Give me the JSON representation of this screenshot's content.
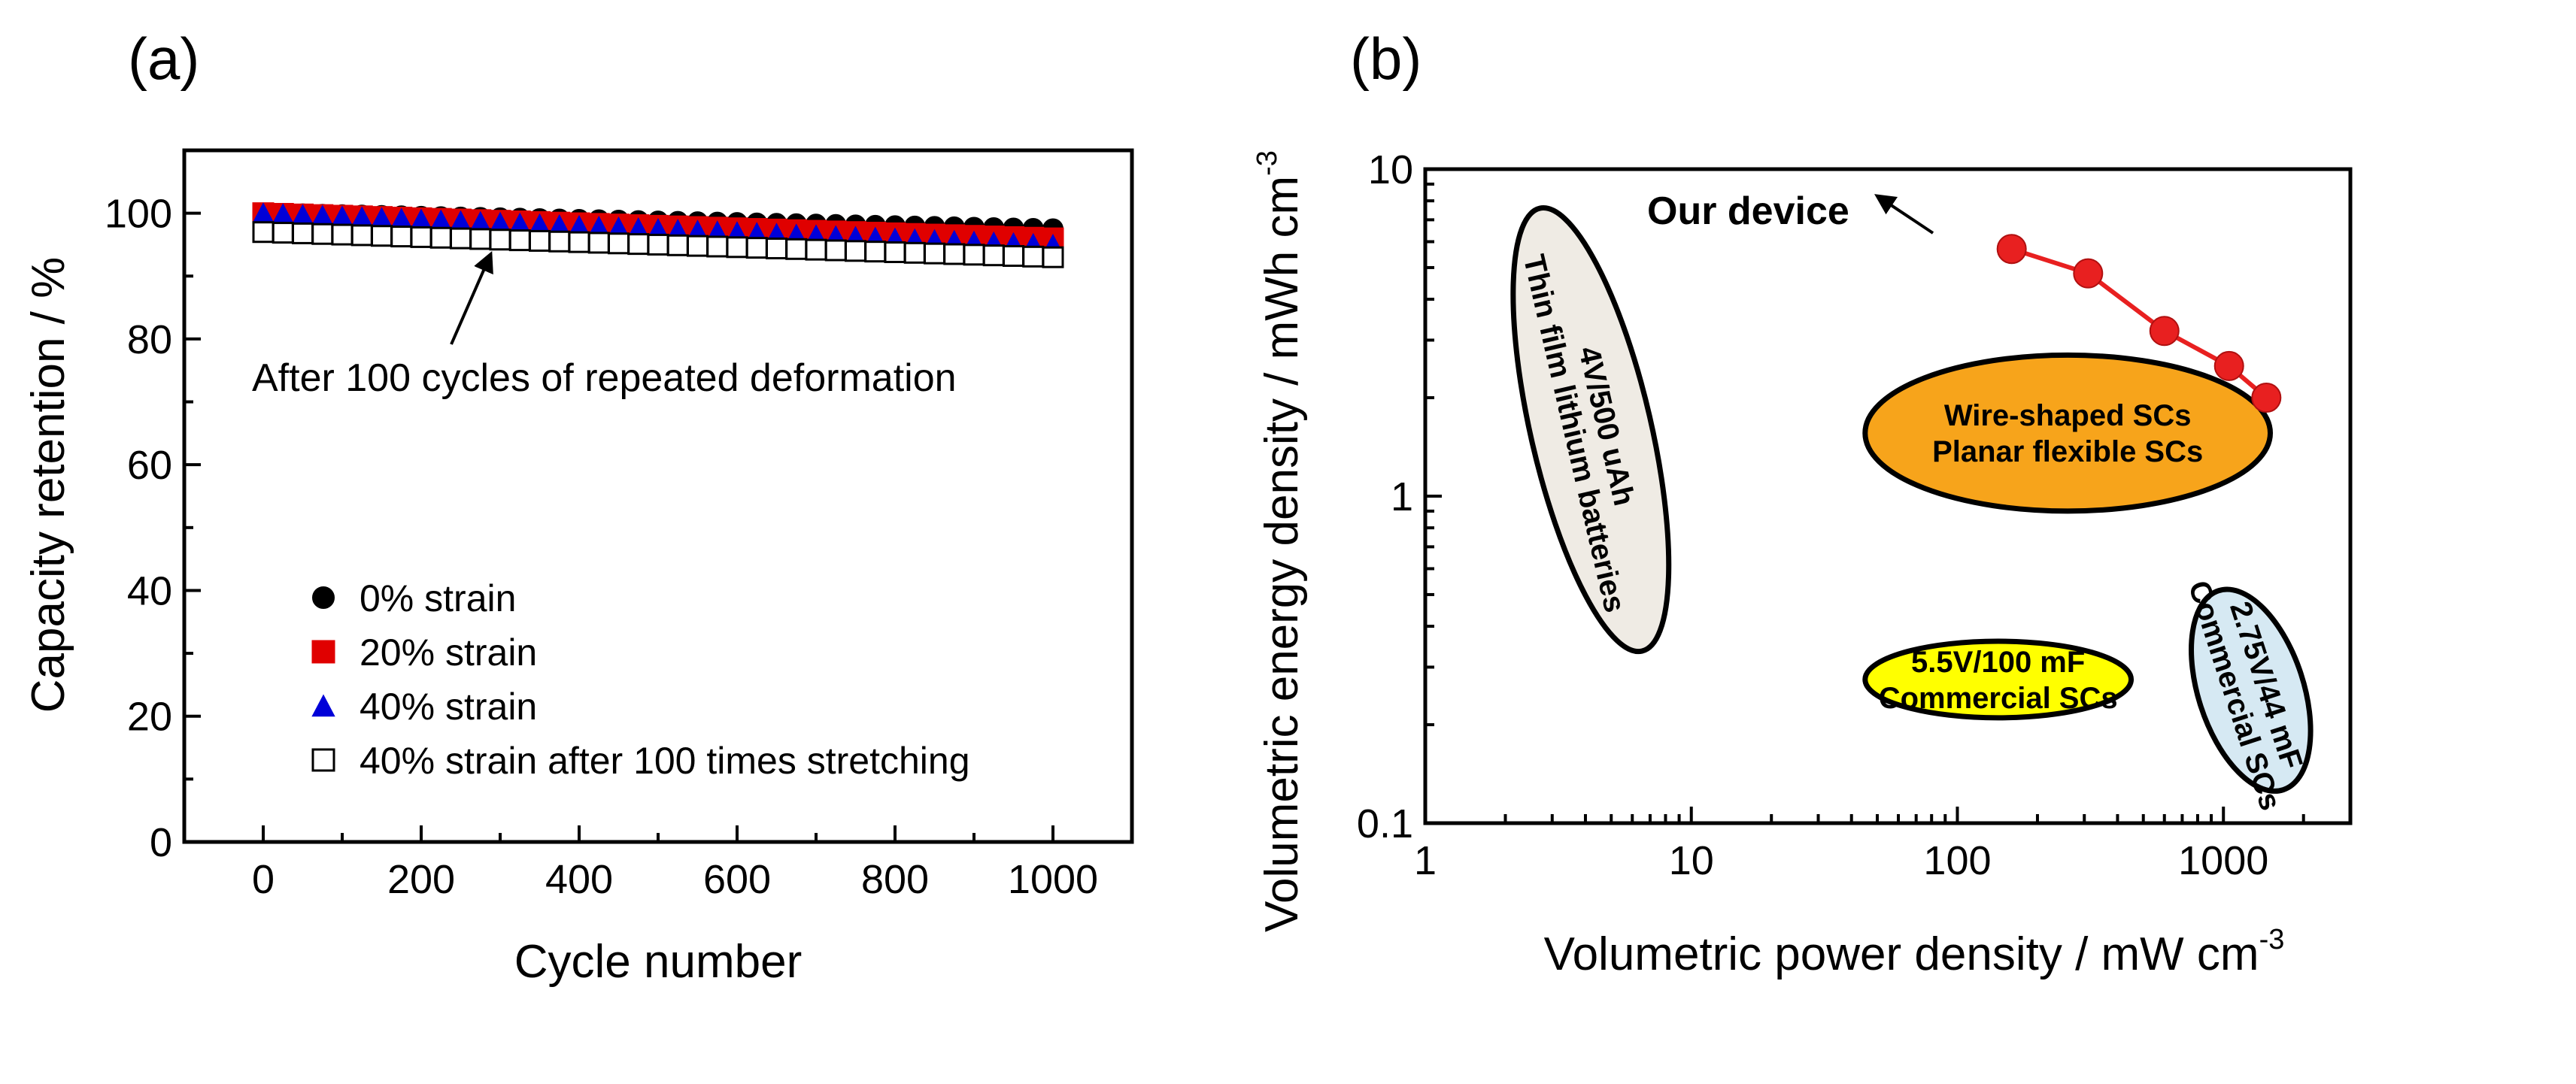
{
  "chart_data": [
    {
      "panel_label": "(a)",
      "type": "scatter",
      "xlabel": "Cycle number",
      "ylabel": "Capacity retention / %",
      "xlim": [
        -100,
        1100
      ],
      "ylim": [
        0,
        110
      ],
      "xticks": [
        0,
        200,
        400,
        600,
        800,
        1000
      ],
      "yticks": [
        0,
        20,
        40,
        60,
        80,
        100
      ],
      "grid": false,
      "legend_position": "bottom-left",
      "annotation": "After 100 cycles of repeated deformation",
      "annotation_target": {
        "x": 280,
        "y": 96
      },
      "series": [
        {
          "name": "0% strain",
          "marker": "circle",
          "color": "#000000",
          "fill": true,
          "y_start": 100,
          "y_end": 97.5
        },
        {
          "name": "20% strain",
          "marker": "square",
          "color": "#e00000",
          "fill": true,
          "y_start": 100,
          "y_end": 96
        },
        {
          "name": "40% strain",
          "marker": "triangle",
          "color": "#0000d8",
          "fill": true,
          "y_start": 100,
          "y_end": 95
        },
        {
          "name": "40% strain after 100 times stretching",
          "marker": "square",
          "color": "#000000",
          "fill": false,
          "y_start": 97,
          "y_end": 93
        }
      ],
      "cycle_step": 25,
      "cycle_max": 1000
    },
    {
      "panel_label": "(b)",
      "type": "scatter",
      "xlabel": "Volumetric power density / mW cm",
      "xlabel_exponent": "-3",
      "ylabel": "Volumetric energy density / mWh cm",
      "ylabel_exponent": "-3",
      "xscale": "log",
      "yscale": "log",
      "xlim": [
        1,
        3000
      ],
      "ylim": [
        0.1,
        10
      ],
      "xticks": [
        1,
        10,
        100,
        1000
      ],
      "xtick_labels": [
        "1",
        "10",
        "100",
        "1000"
      ],
      "yticks": [
        0.1,
        1,
        10
      ],
      "ytick_labels": [
        "0.1",
        "1",
        "10"
      ],
      "grid": false,
      "our_device": {
        "label": "Our device",
        "color": "#e82020",
        "points": [
          {
            "x": 160,
            "y": 5.7
          },
          {
            "x": 310,
            "y": 4.8
          },
          {
            "x": 600,
            "y": 3.2
          },
          {
            "x": 1050,
            "y": 2.5
          },
          {
            "x": 1450,
            "y": 2.0
          }
        ]
      },
      "regions": [
        {
          "id": "thin-film",
          "lines": [
            "4V/500 uAh",
            "Thin film lithium batteries"
          ],
          "fill": "#efebe4",
          "x_range": [
            2.2,
            8
          ],
          "y_range": [
            0.34,
            7.5
          ]
        },
        {
          "id": "wire-shaped",
          "lines": [
            "Wire-shaped SCs",
            "Planar flexible SCs"
          ],
          "fill": "#f7a41b",
          "x_range": [
            45,
            1500
          ],
          "y_range": [
            0.9,
            2.7
          ]
        },
        {
          "id": "5v5",
          "lines": [
            "5.5V/100 mF",
            "Commercial SCs"
          ],
          "fill": "#ffff00",
          "x_range": [
            45,
            450
          ],
          "y_range": [
            0.21,
            0.36
          ]
        },
        {
          "id": "2v75",
          "lines": [
            "2.75V/44 mF",
            "Commercial SCs"
          ],
          "fill": "#d6e9f3",
          "x_range": [
            700,
            2300
          ],
          "y_range": [
            0.13,
            0.5
          ]
        }
      ]
    }
  ]
}
